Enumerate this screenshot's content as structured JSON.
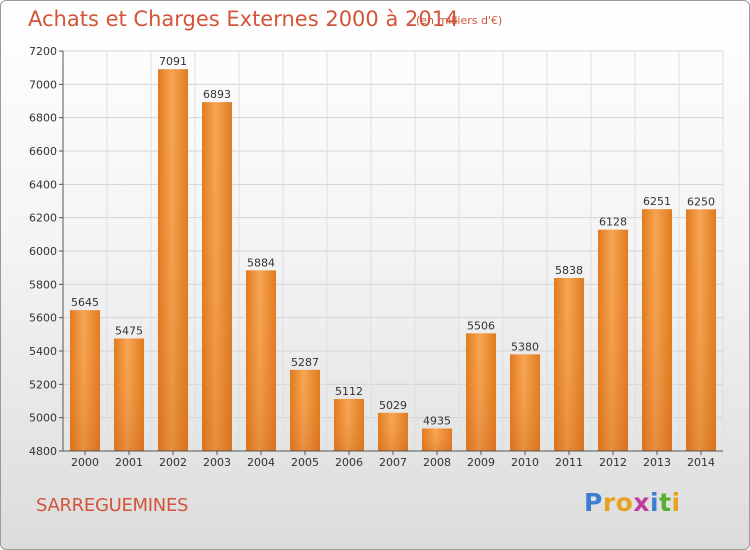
{
  "header": {
    "title": "Achats et Charges Externes 2000 à 2014",
    "subtitle": "(en milliers d'€)"
  },
  "footer": {
    "commune": "SARREGUEMINES",
    "logo_letters": [
      "P",
      "r",
      "o",
      "x",
      "i",
      "t",
      "i"
    ],
    "logo_colors": [
      "#3a7fd0",
      "#e8a020",
      "#e8a020",
      "#c03aa0",
      "#3a7fd0",
      "#58b030",
      "#e8a020"
    ]
  },
  "chart_data": {
    "type": "bar",
    "categories": [
      "2000",
      "2001",
      "2002",
      "2003",
      "2004",
      "2005",
      "2006",
      "2007",
      "2008",
      "2009",
      "2010",
      "2011",
      "2012",
      "2013",
      "2014"
    ],
    "values": [
      5645,
      5475,
      7091,
      6893,
      5884,
      5287,
      5112,
      5029,
      4935,
      5506,
      5380,
      5838,
      6128,
      6251,
      6250
    ],
    "title": "Achats et Charges Externes 2000 à 2014",
    "subtitle": "(en milliers d'€)",
    "ylim": [
      4800,
      7200
    ],
    "yticks": [
      4800,
      5000,
      5200,
      5400,
      5600,
      5800,
      6000,
      6200,
      6400,
      6600,
      6800,
      7000,
      7200
    ],
    "grid": true,
    "bar_color": "#f0913a"
  }
}
